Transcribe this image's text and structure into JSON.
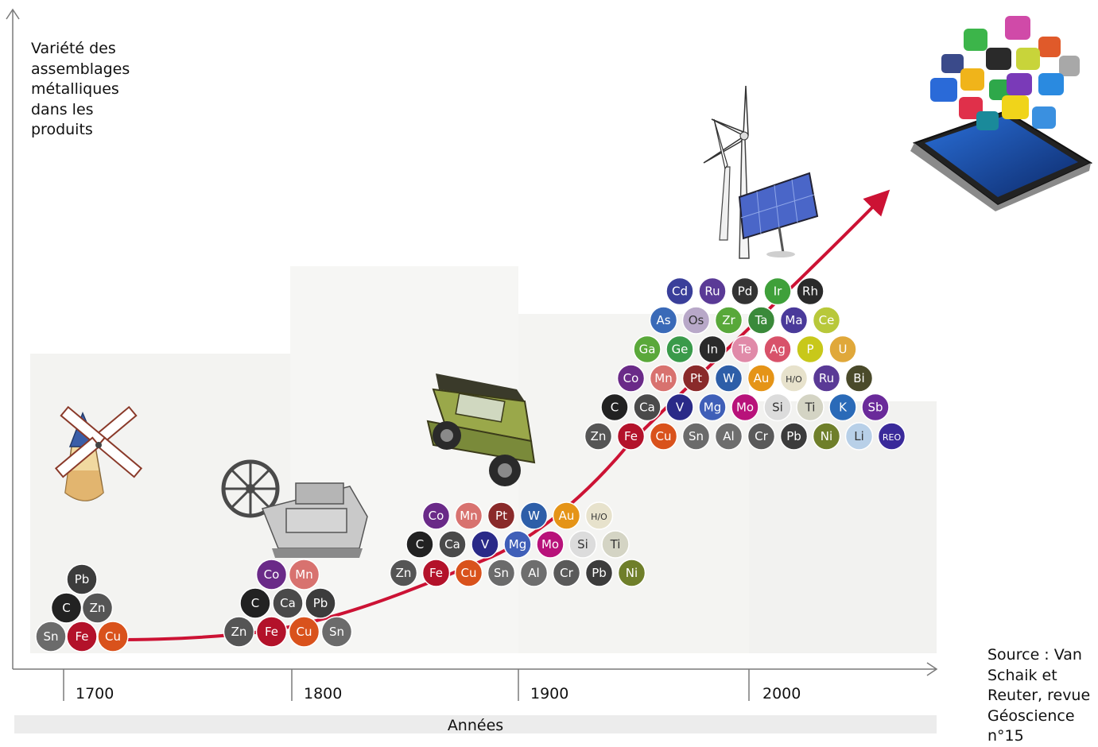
{
  "y_axis_label": "Variété des assemblages métalliques dans les produits",
  "x_axis_label": "Années",
  "source": "Source : Van Schaik et Reuter, revue Géoscience n°15",
  "ticks": [
    "1700",
    "1800",
    "1900",
    "2000"
  ],
  "colors": {
    "axis": "#7a7a7a",
    "trend": "#cc1234",
    "shade": "#f3f3f1"
  },
  "eras": [
    {
      "id": "windmill",
      "icon": "windmill-icon",
      "rows": [
        [
          "Pb"
        ],
        [
          "C",
          "Zn"
        ],
        [
          "Sn",
          "Fe",
          "Cu"
        ]
      ]
    },
    {
      "id": "steam",
      "icon": "steam-engine-icon",
      "rows": [
        [
          "Co",
          "Mn"
        ],
        [
          "C",
          "Ca",
          "Pb"
        ],
        [
          "Zn",
          "Fe",
          "Cu",
          "Sn"
        ]
      ]
    },
    {
      "id": "car",
      "icon": "car-icon",
      "rows": [
        [
          "Co",
          "Mn",
          "Pt",
          "W",
          "Au",
          "H/O"
        ],
        [
          "C",
          "Ca",
          "V",
          "Mg",
          "Mo",
          "Si",
          "Ti"
        ],
        [
          "Zn",
          "Fe",
          "Cu",
          "Sn",
          "Al",
          "Cr",
          "Pb",
          "Ni"
        ]
      ]
    },
    {
      "id": "renewables",
      "icon": "wind-turbine-solar-icon",
      "rows": [
        [
          "Cd",
          "Ru",
          "Pd",
          "Ir",
          "Rh"
        ],
        [
          "As",
          "Os",
          "Zr",
          "Ta",
          "Ma",
          "Ce"
        ],
        [
          "Ga",
          "Ge",
          "In",
          "Te",
          "Ag",
          "P",
          "U"
        ],
        [
          "Co",
          "Mn",
          "Pt",
          "W",
          "Au",
          "H/O",
          "Ru",
          "Bi"
        ],
        [
          "C",
          "Ca",
          "V",
          "Mg",
          "Mo",
          "Si",
          "Ti",
          "K",
          "Sb"
        ],
        [
          "Zn",
          "Fe",
          "Cu",
          "Sn",
          "Al",
          "Cr",
          "Pb",
          "Ni",
          "Li",
          "REO"
        ]
      ]
    }
  ],
  "element_colors": {
    "Sn": "#6b6b6b",
    "Fe": "#b3122a",
    "Cu": "#d9521c",
    "C": "#222222",
    "Zn": "#555555",
    "Pb": "#3c3c3c",
    "Co": "#6a2a88",
    "Mn": "#d8726f",
    "Ca": "#4a4a4a",
    "Pt": "#8a2a2a",
    "W": "#2d5ea8",
    "Au": "#e59417",
    "H/O": "#e7e2cc",
    "V": "#2a2a88",
    "Mg": "#3f5fb8",
    "Mo": "#b8127a",
    "Si": "#dcdcdc",
    "Ti": "#d4d4c4",
    "Al": "#6e6e6e",
    "Cr": "#5a5a5a",
    "Ni": "#6f7f2a",
    "Cd": "#3a3f9a",
    "Ru": "#5a3a96",
    "Pd": "#333333",
    "Ir": "#3fa03a",
    "Rh": "#2a2a2a",
    "As": "#3a6ab8",
    "Os": "#b8a8c8",
    "Zr": "#58a83a",
    "Ta": "#3a8a3a",
    "Ma": "#4a3a9a",
    "Ce": "#b8c83a",
    "Ga": "#5aa83a",
    "Ge": "#3a9a4a",
    "In": "#2a2a2a",
    "Te": "#e08aa8",
    "Ag": "#d8526a",
    "P": "#c8c81a",
    "U": "#e0a83a",
    "Bi": "#4a4a2a",
    "K": "#2a6ab8",
    "Sb": "#6a2a9a",
    "Li": "#b8d0e8",
    "REO": "#3a2a9a"
  },
  "light_elements": [
    "H/O",
    "Si",
    "Ti",
    "Li",
    "Os"
  ]
}
